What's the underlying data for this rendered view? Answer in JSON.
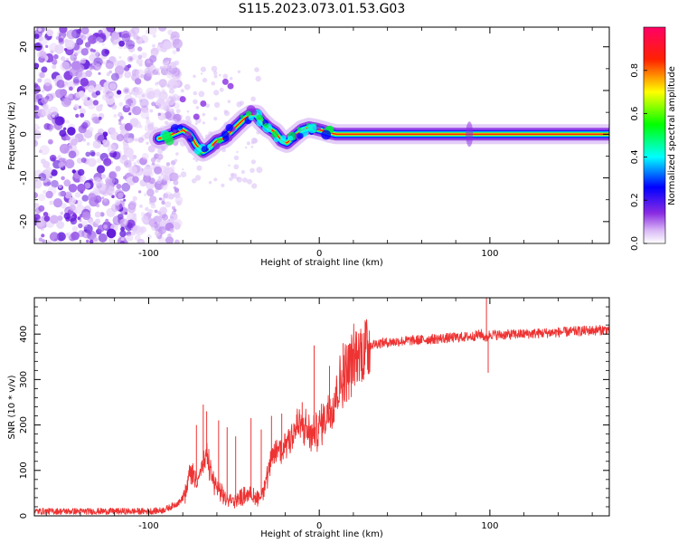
{
  "figure": {
    "title": "S115.2023.073.01.53.G03"
  },
  "chart_data": [
    {
      "type": "heatmap",
      "xlabel": "Height of straight line (km)",
      "ylabel": "Frequency (Hz)",
      "xlim": [
        -167,
        170
      ],
      "ylim": [
        -25,
        24.5
      ],
      "x_ticks": [
        -100,
        0,
        100
      ],
      "y_ticks": [
        -20,
        -10,
        0,
        10,
        20
      ],
      "colorbar": {
        "label": "Normalized spectral amplitude",
        "range": [
          0,
          1
        ],
        "ticks": [
          "0.0",
          "0.2",
          "0.4",
          "0.6",
          "0.8"
        ],
        "colors": [
          "#ffffff",
          "#8a2be2",
          "#0000ff",
          "#00ffff",
          "#00ff00",
          "#ffff00",
          "#ff0000",
          "#ff0066"
        ]
      },
      "ridge": {
        "x": [
          -94,
          -90,
          -85,
          -80,
          -76,
          -72,
          -68,
          -64,
          -60,
          -56,
          -52,
          -48,
          -44,
          -40,
          -37,
          -34,
          -30,
          -26,
          -22,
          -19,
          -16,
          -13,
          -10,
          -6,
          -2,
          2,
          6,
          10,
          170
        ],
        "y": [
          -1.0,
          -0.6,
          0.2,
          1.0,
          0.0,
          -2.5,
          -4.0,
          -3.0,
          -1.5,
          -1.0,
          0.5,
          2.0,
          3.5,
          4.5,
          4.5,
          3.0,
          1.5,
          0.5,
          -1.5,
          -2.0,
          -1.0,
          0.0,
          1.0,
          1.5,
          1.2,
          0.8,
          0.3,
          0.0,
          0.0
        ]
      },
      "noise_region": {
        "x_from": -167,
        "x_to": -90
      }
    },
    {
      "type": "line",
      "xlabel": "Height of straight line (km)",
      "ylabel": "SNR (10 * v/v)",
      "xlim": [
        -167,
        170
      ],
      "ylim": [
        0,
        480
      ],
      "x_ticks": [
        -100,
        0,
        100
      ],
      "y_ticks": [
        0,
        100,
        200,
        300,
        400
      ],
      "series": [
        {
          "color": "#ee3333",
          "envelope": {
            "x": [
              -167,
              -100,
              -92,
              -88,
              -82,
              -78,
              -76,
              -72,
              -68,
              -66,
              -62,
              -58,
              -54,
              -50,
              -46,
              -42,
              -38,
              -34,
              -30,
              -28,
              -26,
              -24,
              -22,
              -20,
              -16,
              -12,
              -8,
              -4,
              0,
              4,
              8,
              12,
              16,
              20,
              24,
              28,
              35,
              50,
              70,
              90,
              95,
              98,
              100,
              105,
              130,
              170
            ],
            "y": [
              10,
              10,
              12,
              18,
              30,
              50,
              100,
              80,
              110,
              130,
              75,
              50,
              35,
              35,
              40,
              50,
              40,
              45,
              90,
              120,
              140,
              150,
              140,
              160,
              180,
              200,
              190,
              175,
              195,
              220,
              250,
              290,
              320,
              345,
              360,
              375,
              380,
              385,
              390,
              395,
              400,
              390,
              400,
              398,
              402,
              410
            ]
          },
          "noise_amplitude_pct": 6,
          "spikes": [
            {
              "x": -68,
              "y": 245
            },
            {
              "x": -72,
              "y": 200
            },
            {
              "x": -66,
              "y": 230
            },
            {
              "x": -59,
              "y": 210
            },
            {
              "x": -54,
              "y": 195
            },
            {
              "x": -49,
              "y": 175
            },
            {
              "x": -40,
              "y": 215
            },
            {
              "x": -34,
              "y": 190
            },
            {
              "x": -28,
              "y": 220
            },
            {
              "x": -22,
              "y": 225
            },
            {
              "x": -10,
              "y": 250
            },
            {
              "x": -3,
              "y": 375
            },
            {
              "x": 6,
              "y": 330
            },
            {
              "x": 14,
              "y": 380
            },
            {
              "x": 98,
              "y": 480
            },
            {
              "x": 99,
              "y": 315
            }
          ]
        }
      ]
    }
  ]
}
